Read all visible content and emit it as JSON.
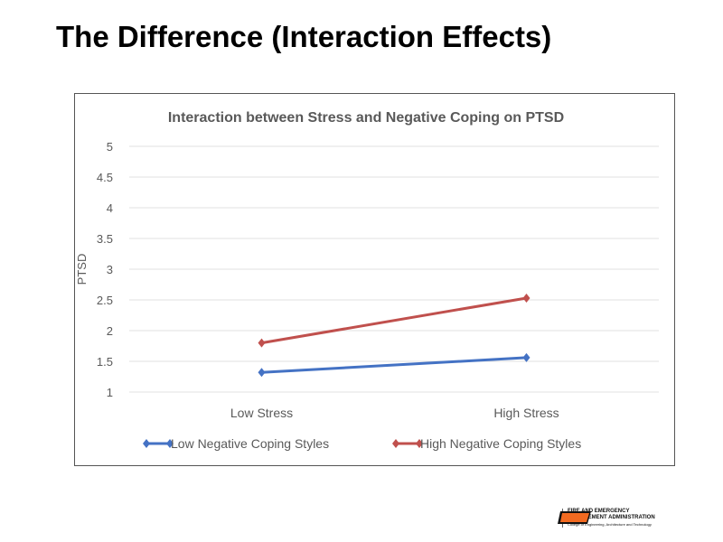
{
  "slide": {
    "title": "The Difference (Interaction Effects)"
  },
  "logo": {
    "mark": "OSU",
    "line1": "FIRE AND EMERGENCY",
    "line2": "MANAGEMENT ADMINISTRATION",
    "line3": "College of Engineering, Architecture and Technology",
    "color": "#f26a21"
  },
  "chart_data": {
    "type": "line",
    "title": "Interaction between Stress and Negative Coping on PTSD",
    "xlabel": "",
    "ylabel": "PTSD",
    "categories": [
      "Low Stress",
      "High Stress"
    ],
    "ylim": [
      1,
      5
    ],
    "yticks": [
      "1",
      "1.5",
      "2",
      "2.5",
      "3",
      "3.5",
      "4",
      "4.5",
      "5"
    ],
    "grid": true,
    "legend": "bottom",
    "series": [
      {
        "name": "Low Negative Coping Styles",
        "values": [
          1.32,
          1.56
        ],
        "color": "#4472c4"
      },
      {
        "name": "High Negative Coping Styles",
        "values": [
          1.8,
          2.53
        ],
        "color": "#c0504d"
      }
    ]
  }
}
